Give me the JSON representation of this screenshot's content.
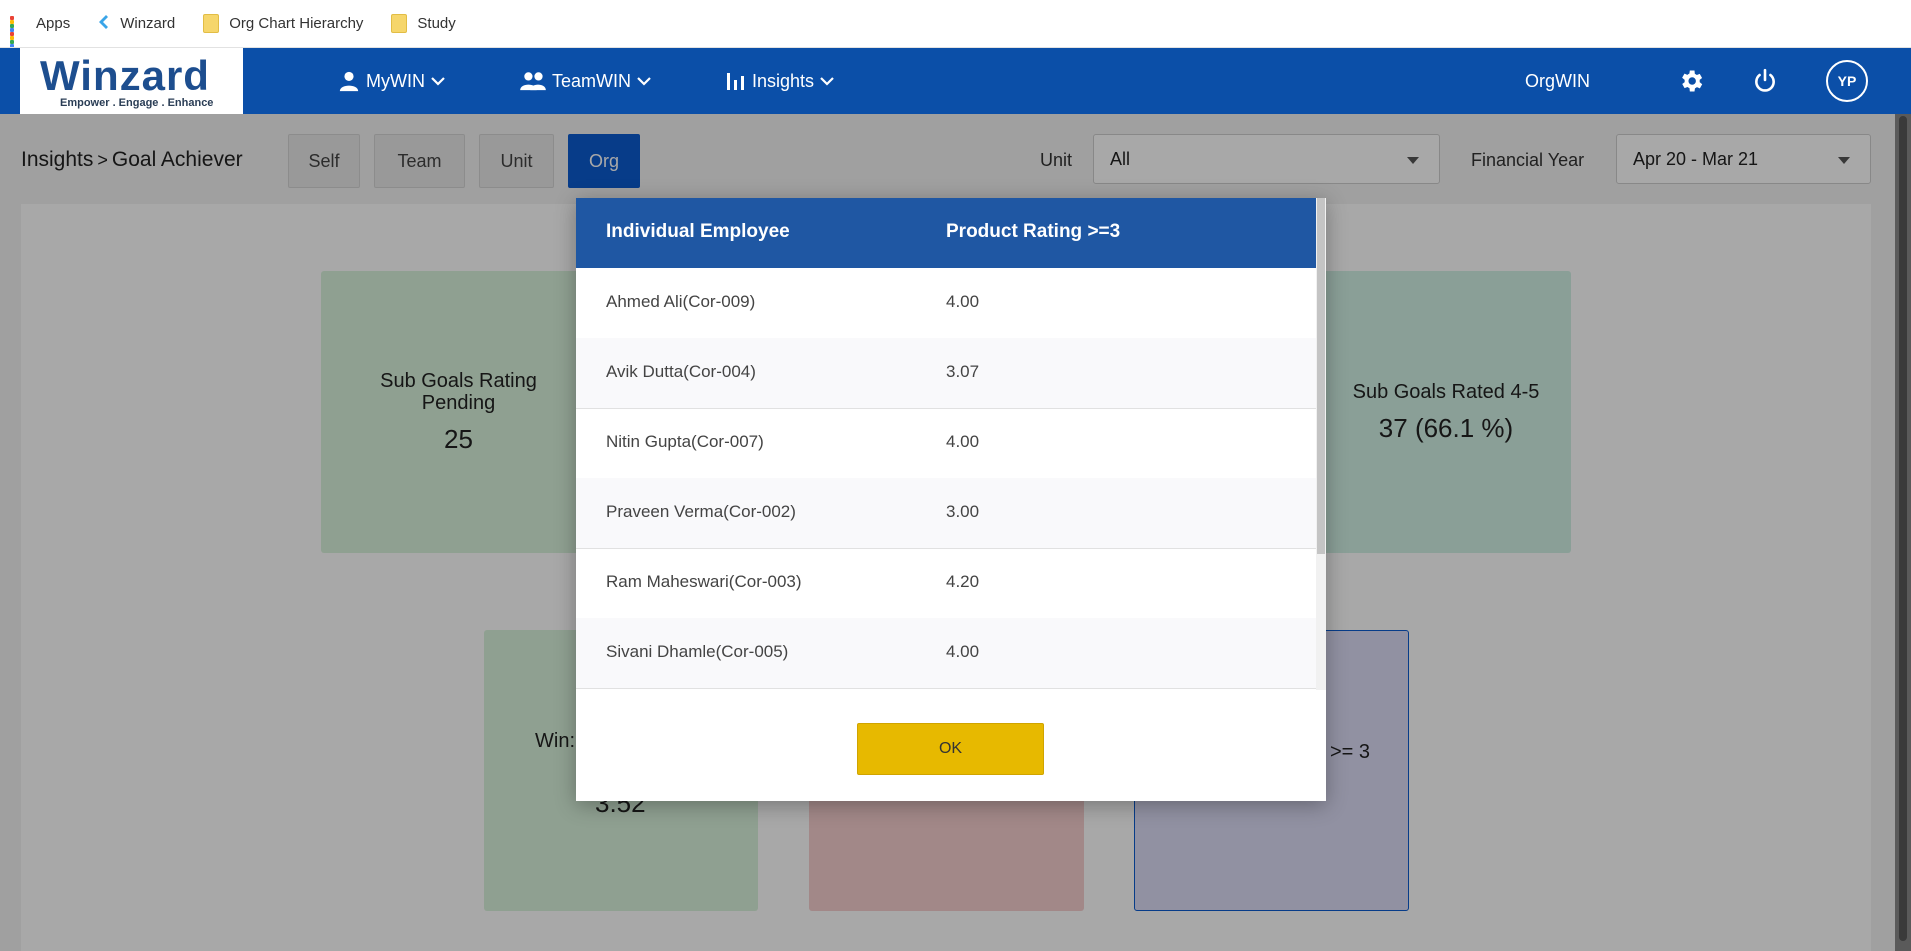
{
  "bookmarks": [
    {
      "label": "Apps",
      "icon": "apps-grid-icon"
    },
    {
      "label": "Winzard",
      "icon": "winzard-favicon-icon"
    },
    {
      "label": "Org Chart Hierarchy",
      "icon": "folder-icon"
    },
    {
      "label": "Study",
      "icon": "folder-icon"
    }
  ],
  "navbar": {
    "logo_text": "Winzard",
    "logo_tagline": "Empower . Engage . Enhance",
    "items": [
      {
        "label": "MyWIN",
        "icon": "person-icon"
      },
      {
        "label": "TeamWIN",
        "icon": "group-icon"
      },
      {
        "label": "Insights",
        "icon": "bar-chart-icon"
      }
    ],
    "orgwin_label": "OrgWIN",
    "avatar_initials": "YP",
    "colors": {
      "navbar_bg": "#0b4fa8",
      "accent": "#0b5bd1"
    }
  },
  "breadcrumb": {
    "parent": "Insights",
    "separator": ">",
    "current": "Goal Achiever"
  },
  "scope_tabs": [
    {
      "label": "Self",
      "active": false
    },
    {
      "label": "Team",
      "active": false
    },
    {
      "label": "Unit",
      "active": false
    },
    {
      "label": "Org",
      "active": true
    }
  ],
  "filters": {
    "unit_label": "Unit",
    "unit_value": "All",
    "fy_label": "Financial Year",
    "fy_value": "Apr 20 - Mar 21"
  },
  "cards": {
    "sub_goals_pending_title": "Sub Goals Rating Pending",
    "sub_goals_pending_value": "25",
    "sub_goals_rated_title": "Sub Goals Rated 4-5",
    "sub_goals_rated_value": "37 (66.1 %)",
    "bottom_left_title_partial": "Win:",
    "bottom_left_value_partial": "3.52",
    "bottom_right_title_partial": ">= 3"
  },
  "modal": {
    "col1_header": "Individual Employee",
    "col2_header": "Product Rating >=3",
    "rows": [
      {
        "employee": "Ahmed Ali(Cor-009)",
        "rating": "4.00"
      },
      {
        "employee": "Avik Dutta(Cor-004)",
        "rating": "3.07"
      },
      {
        "employee": "Nitin Gupta(Cor-007)",
        "rating": "4.00"
      },
      {
        "employee": "Praveen Verma(Cor-002)",
        "rating": "3.00"
      },
      {
        "employee": "Ram Maheswari(Cor-003)",
        "rating": "4.20"
      },
      {
        "employee": "Sivani Dhamle(Cor-005)",
        "rating": "4.00"
      }
    ],
    "ok_label": "OK"
  }
}
